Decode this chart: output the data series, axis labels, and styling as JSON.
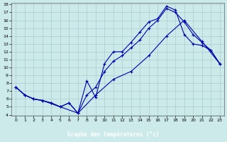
{
  "bg_color": "#cceaea",
  "grid_color": "#aacccc",
  "line_color": "#0000aa",
  "ylim": [
    4,
    18
  ],
  "xlim": [
    -0.5,
    23.5
  ],
  "ytick_min": 4,
  "ytick_max": 18,
  "xlabel": "Graphe des températures (°c)",
  "xlabel_bg": "#000080",
  "xlabel_color": "#ffffff",
  "line1_x": [
    0,
    1,
    2,
    3,
    4,
    5,
    6,
    7,
    8,
    9,
    10,
    11,
    12,
    13,
    14,
    15,
    16,
    17,
    18,
    19,
    20,
    21,
    22,
    23
  ],
  "line1_y": [
    7.5,
    6.5,
    6.0,
    5.8,
    5.5,
    5.0,
    5.5,
    4.2,
    8.3,
    6.2,
    10.5,
    12.0,
    12.0,
    13.2,
    14.5,
    15.8,
    16.2,
    17.8,
    17.3,
    14.2,
    13.0,
    12.8,
    12.2,
    10.5
  ],
  "line2_x": [
    0,
    1,
    2,
    3,
    4,
    5,
    6,
    7,
    8,
    9,
    10,
    11,
    12,
    13,
    14,
    15,
    16,
    17,
    18,
    19,
    20,
    21,
    22,
    23
  ],
  "line2_y": [
    7.5,
    6.5,
    6.0,
    5.8,
    5.5,
    5.0,
    5.5,
    4.2,
    6.5,
    7.5,
    9.5,
    10.8,
    11.5,
    12.5,
    13.5,
    15.0,
    16.0,
    17.5,
    17.0,
    15.8,
    14.2,
    13.2,
    12.2,
    10.5
  ],
  "line3_x": [
    0,
    1,
    2,
    3,
    7,
    9,
    11,
    13,
    15,
    17,
    19,
    21,
    23
  ],
  "line3_y": [
    7.5,
    6.5,
    6.0,
    5.8,
    4.2,
    6.5,
    8.5,
    9.5,
    11.5,
    14.0,
    16.0,
    13.3,
    10.5
  ]
}
